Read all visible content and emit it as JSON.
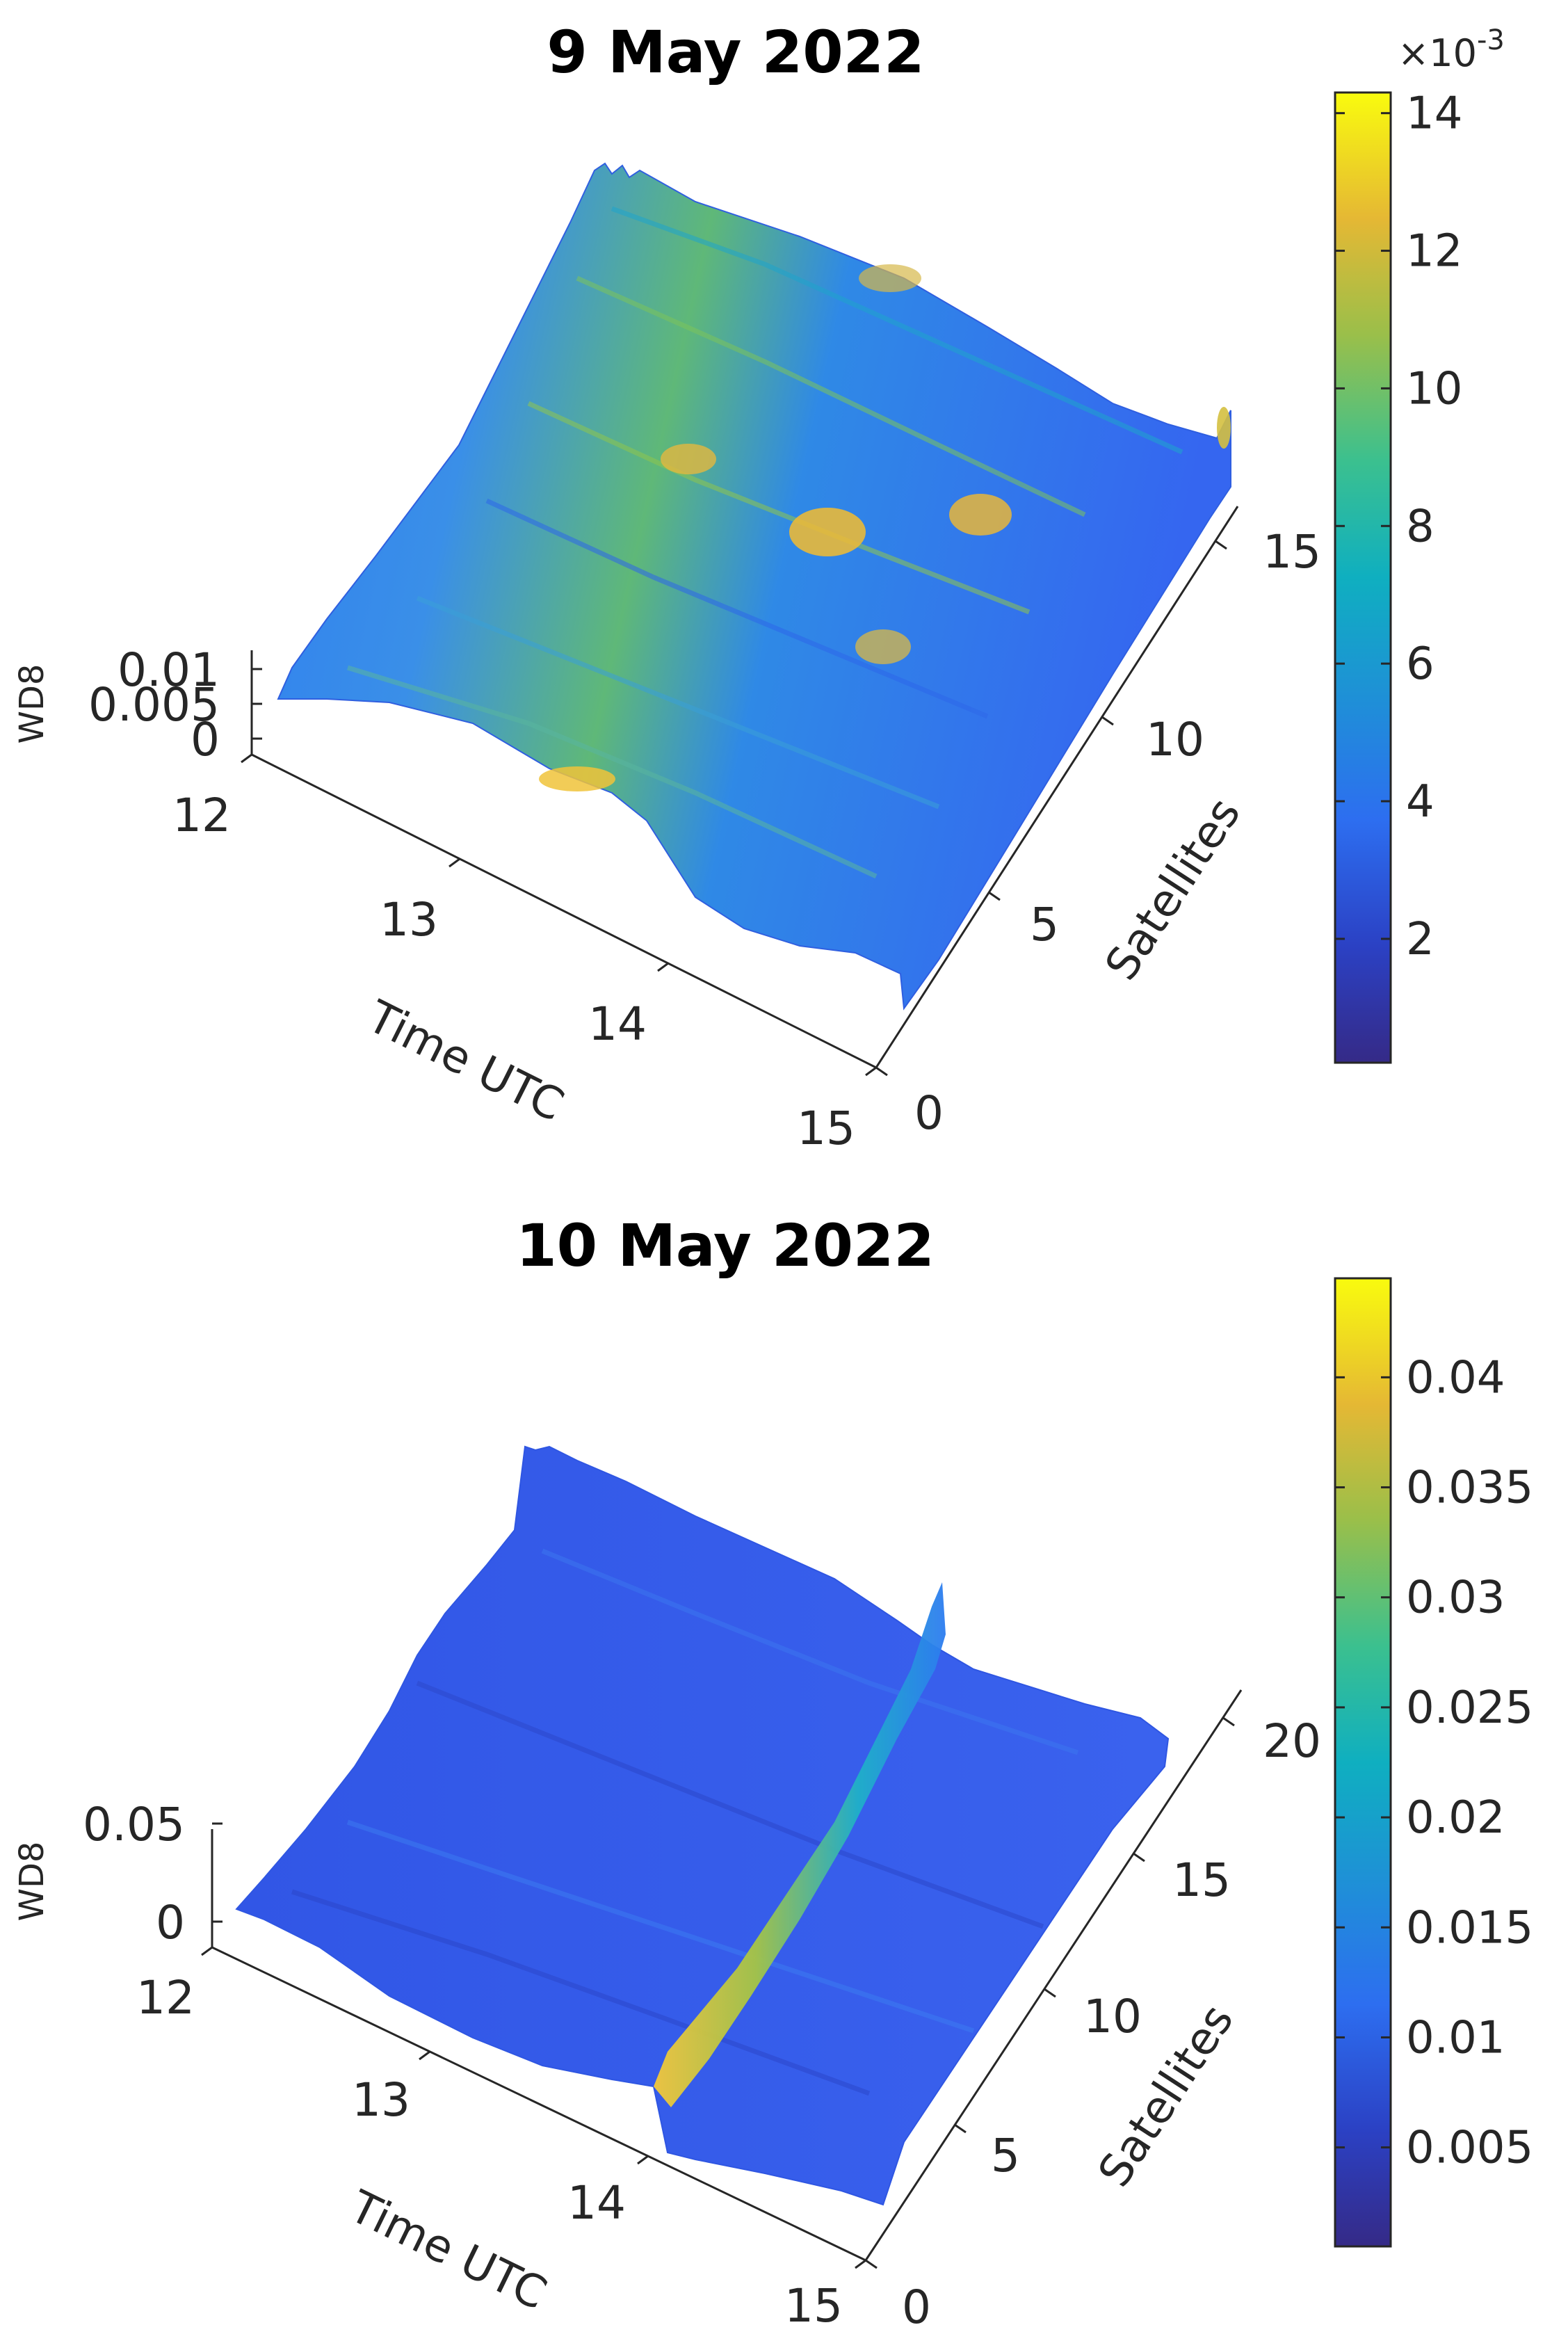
{
  "chart_data": [
    {
      "type": "surface",
      "title": "9 May 2022",
      "xlabel": "Time UTC",
      "ylabel": "Satellites",
      "zlabel": "WD8",
      "x_ticks": [
        "12",
        "13",
        "14",
        "15"
      ],
      "xlim": [
        12,
        15
      ],
      "y_ticks": [
        "0",
        "5",
        "10",
        "15"
      ],
      "ylim": [
        0,
        16
      ],
      "z_ticks": [
        "0",
        "0.005",
        "0.01"
      ],
      "zlim": [
        0,
        0.0145
      ],
      "colorbar": {
        "exponent_label": "×10",
        "exponent_power": "-3",
        "ticks": [
          "2",
          "4",
          "6",
          "8",
          "10",
          "12",
          "14"
        ],
        "tick_values": [
          2,
          4,
          6,
          8,
          10,
          12,
          14
        ],
        "range": [
          0.2,
          14.3
        ],
        "colormap": "parula"
      },
      "surface_features": {
        "baseline_level": 0.004,
        "peak_value": 0.0142,
        "peak_region": "time 13.5–14.2 UTC, satellites 4–12",
        "elevated_band_start": 13.2,
        "elevated_band_end": 14.4
      }
    },
    {
      "type": "surface",
      "title": "10 May 2022",
      "xlabel": "Time UTC",
      "ylabel": "Satellites",
      "zlabel": "WD8",
      "x_ticks": [
        "12",
        "13",
        "14",
        "15"
      ],
      "xlim": [
        12,
        15
      ],
      "y_ticks": [
        "0",
        "5",
        "10",
        "15",
        "20"
      ],
      "ylim": [
        0,
        21
      ],
      "z_ticks": [
        "0",
        "0.05"
      ],
      "zlim": [
        0,
        0.05
      ],
      "colorbar": {
        "ticks": [
          "0.005",
          "0.01",
          "0.015",
          "0.02",
          "0.025",
          "0.03",
          "0.035",
          "0.04"
        ],
        "tick_values": [
          0.005,
          0.01,
          0.015,
          0.02,
          0.025,
          0.03,
          0.035,
          0.04
        ],
        "range": [
          0.0005,
          0.0445
        ],
        "colormap": "parula"
      },
      "surface_features": {
        "baseline_level": 0.006,
        "ridge_time": 14.05,
        "ridge_peak": 0.044
      }
    }
  ]
}
